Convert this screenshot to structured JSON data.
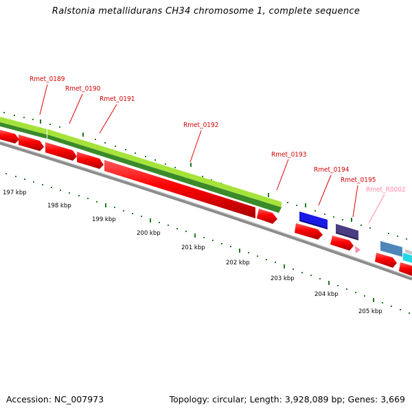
{
  "title": "Ralstonia metallidurans CH34 chromosome 1, complete sequence",
  "footer": {
    "accession": "Accession: NC_007973",
    "stats": "Topology: circular; Length: 3,928,089 bp; Genes: 3,669"
  },
  "colors": {
    "gene_red": "#ff0000",
    "gene_green_light": "#a6e33a",
    "gene_green_dark": "#3a8a2a",
    "label_red": "#d40000",
    "label_pink": "#ff8aa8",
    "tick_green": "#1f7a1f",
    "blue": "#1a1ae6",
    "purple": "#4a3d82",
    "steelblue": "#4d86b8",
    "cyan": "#22d8e6",
    "backbone": "#8c8c8c"
  },
  "kbp_labels": [
    "197 kbp",
    "198 kbp",
    "199 kbp",
    "200 kbp",
    "201 kbp",
    "202 kbp",
    "203 kbp",
    "204 kbp",
    "205 kbp"
  ],
  "gene_labels": [
    "Rmet_0189",
    "Rmet_0190",
    "Rmet_0191",
    "Rmet_0192",
    "Rmet_0193",
    "Rmet_0194",
    "Rmet_0195",
    "Rmet_R0002"
  ]
}
